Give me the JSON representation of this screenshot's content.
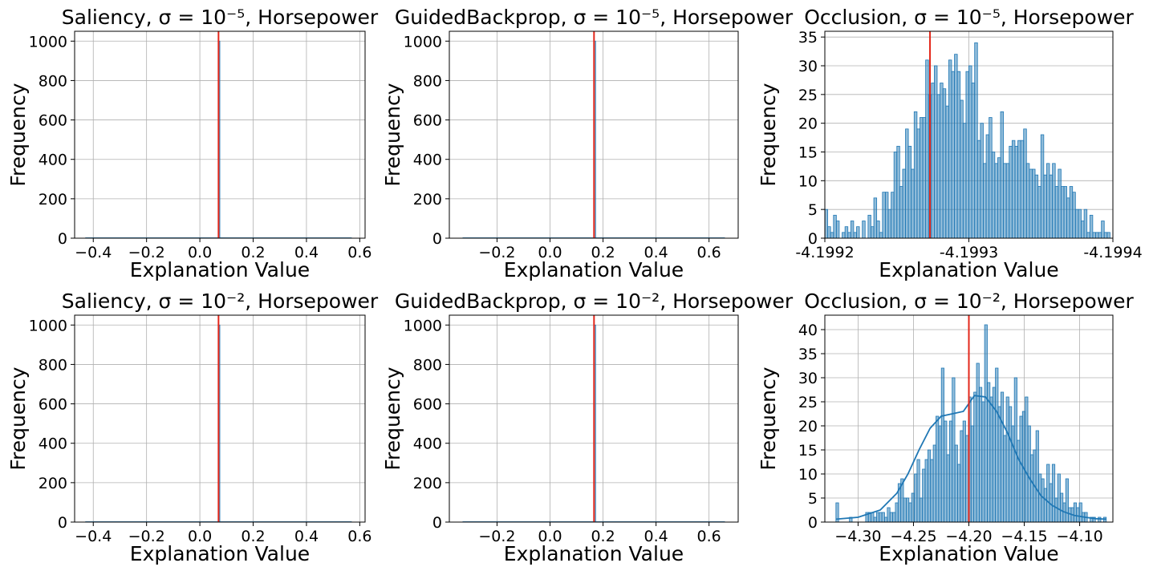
{
  "chart_data": [
    {
      "type": "histogram",
      "title": "Saliency, σ = 10⁻⁵, Horsepower",
      "xlabel": "Explanation Value",
      "ylabel": "Frequency",
      "xlim": [
        -0.47,
        0.62
      ],
      "ylim": [
        0,
        1050
      ],
      "xticks": [
        -0.4,
        -0.2,
        0.0,
        0.2,
        0.4,
        0.6
      ],
      "xtick_labels": [
        "−0.4",
        "−0.2",
        "0.0",
        "0.2",
        "0.4",
        "0.6"
      ],
      "yticks": [
        0,
        200,
        400,
        600,
        800,
        1000
      ],
      "bars": [
        {
          "x0": 0.069,
          "x1": 0.075,
          "count": 1000
        }
      ],
      "baseline_bin": [
        -0.43,
        0.57
      ],
      "reference_line": {
        "x": 0.07,
        "color": "#e3271b"
      },
      "bar_color": "#1f77b4",
      "grid": true
    },
    {
      "type": "histogram",
      "title": "GuidedBackprop, σ = 10⁻⁵, Horsepower",
      "xlabel": "Explanation Value",
      "ylabel": "Frequency",
      "xlim": [
        -0.38,
        0.71
      ],
      "ylim": [
        0,
        1050
      ],
      "xticks": [
        -0.2,
        0.0,
        0.2,
        0.4,
        0.6
      ],
      "xtick_labels": [
        "−0.2",
        "0.0",
        "0.2",
        "0.4",
        "0.6"
      ],
      "yticks": [
        0,
        200,
        400,
        600,
        800,
        1000
      ],
      "bars": [
        {
          "x0": 0.166,
          "x1": 0.172,
          "count": 1000
        }
      ],
      "baseline_bin": [
        -0.33,
        0.66
      ],
      "reference_line": {
        "x": 0.166,
        "color": "#e3271b"
      },
      "bar_color": "#1f77b4",
      "grid": true
    },
    {
      "type": "histogram",
      "title": "Occlusion, σ = 10⁻⁵, Horsepower",
      "xlabel": "Explanation Value",
      "ylabel": "Frequency",
      "xlim": [
        0,
        100
      ],
      "ylim": [
        0,
        36
      ],
      "xticks": [
        0,
        50,
        100
      ],
      "xtick_labels": [
        "-4.1992",
        "-4.1993",
        "-4.1994"
      ],
      "yticks": [
        0,
        5,
        10,
        15,
        20,
        25,
        30,
        35
      ],
      "bins": 100,
      "counts": [
        5,
        2,
        1,
        4,
        3,
        0,
        1,
        2,
        1,
        3,
        1,
        2,
        0,
        3,
        0,
        4,
        2,
        7,
        3,
        1,
        8,
        8,
        5,
        8,
        15,
        16,
        9,
        12,
        19,
        16,
        12,
        22,
        19,
        21,
        21,
        31,
        25,
        27,
        30,
        25,
        27,
        26,
        23,
        31,
        29,
        32,
        29,
        24,
        20,
        29,
        30,
        27,
        34,
        17,
        20,
        13,
        18,
        21,
        15,
        13,
        14,
        22,
        13,
        13,
        16,
        17,
        16,
        17,
        17,
        19,
        13,
        12,
        12,
        11,
        9,
        18,
        11,
        13,
        11,
        13,
        9,
        12,
        9,
        9,
        7,
        9,
        8,
        5,
        5,
        3,
        5,
        1,
        4,
        1,
        1,
        1,
        3,
        1,
        1,
        0
      ],
      "reference_line": {
        "x": 36.5,
        "color": "#e3271b"
      },
      "bar_color": "#1f77b4",
      "grid": true
    },
    {
      "type": "histogram",
      "title": "Saliency, σ = 10⁻², Horsepower",
      "xlabel": "Explanation Value",
      "ylabel": "Frequency",
      "xlim": [
        -0.47,
        0.62
      ],
      "ylim": [
        0,
        1050
      ],
      "xticks": [
        -0.4,
        -0.2,
        0.0,
        0.2,
        0.4,
        0.6
      ],
      "xtick_labels": [
        "−0.4",
        "−0.2",
        "0.0",
        "0.2",
        "0.4",
        "0.6"
      ],
      "yticks": [
        0,
        200,
        400,
        600,
        800,
        1000
      ],
      "bars": [
        {
          "x0": 0.069,
          "x1": 0.075,
          "count": 1000
        }
      ],
      "baseline_bin": [
        -0.43,
        0.57
      ],
      "reference_line": {
        "x": 0.07,
        "color": "#e3271b"
      },
      "bar_color": "#1f77b4",
      "grid": true
    },
    {
      "type": "histogram",
      "title": "GuidedBackprop, σ = 10⁻², Horsepower",
      "xlabel": "Explanation Value",
      "ylabel": "Frequency",
      "xlim": [
        -0.38,
        0.71
      ],
      "ylim": [
        0,
        1050
      ],
      "xticks": [
        -0.2,
        0.0,
        0.2,
        0.4,
        0.6
      ],
      "xtick_labels": [
        "−0.2",
        "0.0",
        "0.2",
        "0.4",
        "0.6"
      ],
      "yticks": [
        0,
        200,
        400,
        600,
        800,
        1000
      ],
      "bars": [
        {
          "x0": 0.166,
          "x1": 0.172,
          "count": 1000
        }
      ],
      "baseline_bin": [
        -0.33,
        0.66
      ],
      "reference_line": {
        "x": 0.166,
        "color": "#e3271b"
      },
      "bar_color": "#1f77b4",
      "grid": true
    },
    {
      "type": "histogram",
      "title": "Occlusion, σ = 10⁻², Horsepower",
      "xlabel": "Explanation Value",
      "ylabel": "Frequency",
      "xlim": [
        -4.33,
        -4.07
      ],
      "ylim": [
        0,
        43
      ],
      "xticks": [
        -4.3,
        -4.25,
        -4.2,
        -4.15,
        -4.1
      ],
      "xtick_labels": [
        "−4.30",
        "−4.25",
        "−4.20",
        "−4.15",
        "−4.10"
      ],
      "yticks": [
        0,
        5,
        10,
        15,
        20,
        25,
        30,
        35,
        40
      ],
      "bins_range": [
        -4.32,
        -4.076
      ],
      "bins": 100,
      "counts": [
        4,
        0,
        0,
        0,
        0,
        1,
        0,
        0,
        0,
        0,
        0,
        2,
        2,
        2,
        1,
        2,
        2,
        2,
        1,
        3,
        2,
        2,
        4,
        8,
        9,
        5,
        5,
        4,
        6,
        10,
        13,
        5,
        11,
        13,
        15,
        13,
        16,
        22,
        20,
        32,
        21,
        14,
        21,
        30,
        16,
        12,
        19,
        21,
        18,
        26,
        20,
        27,
        33,
        28,
        25,
        41,
        29,
        26,
        28,
        32,
        24,
        27,
        18,
        26,
        24,
        20,
        30,
        17,
        22,
        23,
        26,
        20,
        14,
        15,
        19,
        10,
        9,
        7,
        12,
        8,
        12,
        5,
        10,
        6,
        4,
        9,
        3,
        3,
        4,
        3,
        4,
        2,
        2,
        0,
        1,
        1,
        0,
        1,
        0,
        1
      ],
      "kde": {
        "x": [
          -4.32,
          -4.3,
          -4.28,
          -4.265,
          -4.255,
          -4.245,
          -4.235,
          -4.225,
          -4.215,
          -4.205,
          -4.195,
          -4.185,
          -4.175,
          -4.165,
          -4.155,
          -4.145,
          -4.135,
          -4.125,
          -4.115,
          -4.105,
          -4.095,
          -4.085,
          -4.076
        ],
        "y": [
          0.6,
          1.0,
          2.5,
          6.0,
          10.0,
          15.0,
          19.5,
          22.0,
          22.5,
          23.0,
          26.3,
          26.0,
          23.0,
          18.5,
          13.0,
          9.0,
          5.5,
          3.5,
          2.2,
          1.4,
          1.0,
          0.7,
          0.6
        ],
        "color": "#1f77b4"
      },
      "reference_line": {
        "x": -4.2,
        "color": "#e3271b"
      },
      "bar_color": "#1f77b4",
      "grid": true
    }
  ]
}
